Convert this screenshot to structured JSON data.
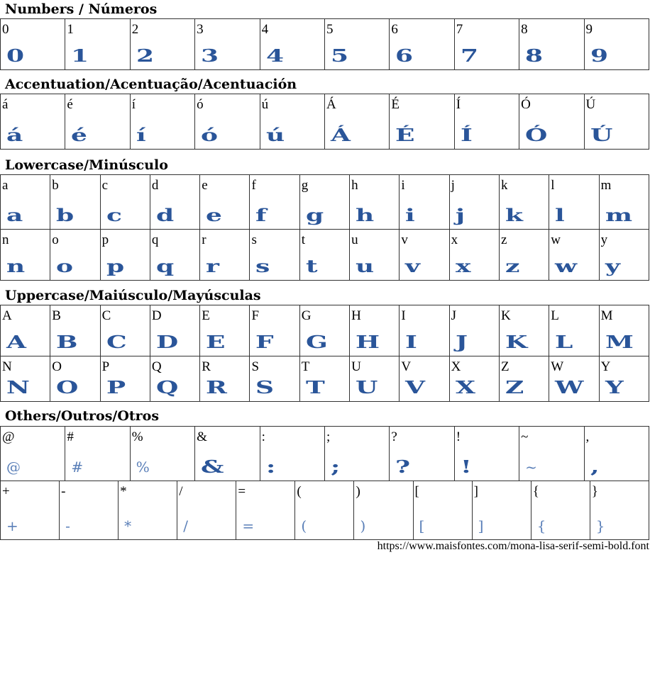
{
  "sections": [
    {
      "title": "Numbers / Números",
      "rows": [
        [
          "0",
          "1",
          "2",
          "3",
          "4",
          "5",
          "6",
          "7",
          "8",
          "9"
        ]
      ]
    },
    {
      "title": "Accentuation/Acentuação/Acentuación",
      "rows": [
        [
          "á",
          "é",
          "í",
          "ó",
          "ú",
          "Á",
          "É",
          "Í",
          "Ó",
          "Ú"
        ]
      ]
    },
    {
      "title": "Lowercase/Minúsculo",
      "rows": [
        [
          "a",
          "b",
          "c",
          "d",
          "e",
          "f",
          "g",
          "h",
          "i",
          "j",
          "k",
          "l",
          "m"
        ],
        [
          "n",
          "o",
          "p",
          "q",
          "r",
          "s",
          "t",
          "u",
          "v",
          "x",
          "z",
          "w",
          "y"
        ]
      ]
    },
    {
      "title": "Uppercase/Maiúsculo/Mayúsculas",
      "rows": [
        [
          "A",
          "B",
          "C",
          "D",
          "E",
          "F",
          "G",
          "H",
          "I",
          "J",
          "K",
          "L",
          "M"
        ],
        [
          "N",
          "O",
          "P",
          "Q",
          "R",
          "S",
          "T",
          "U",
          "V",
          "X",
          "Z",
          "W",
          "Y"
        ]
      ]
    },
    {
      "title": "Others/Outros/Otros",
      "rows": [
        [
          "@",
          "#",
          "%",
          "&",
          ":",
          ";",
          "?",
          "!",
          "~",
          ","
        ],
        [
          "+",
          "-",
          "*",
          "/",
          "=",
          "(",
          ")",
          "[",
          "]",
          "{",
          "}"
        ]
      ]
    }
  ],
  "sample_color": "#2a5599",
  "footer_url": "https://www.maisfontes.com/mona-lisa-serif-semi-bold.font"
}
